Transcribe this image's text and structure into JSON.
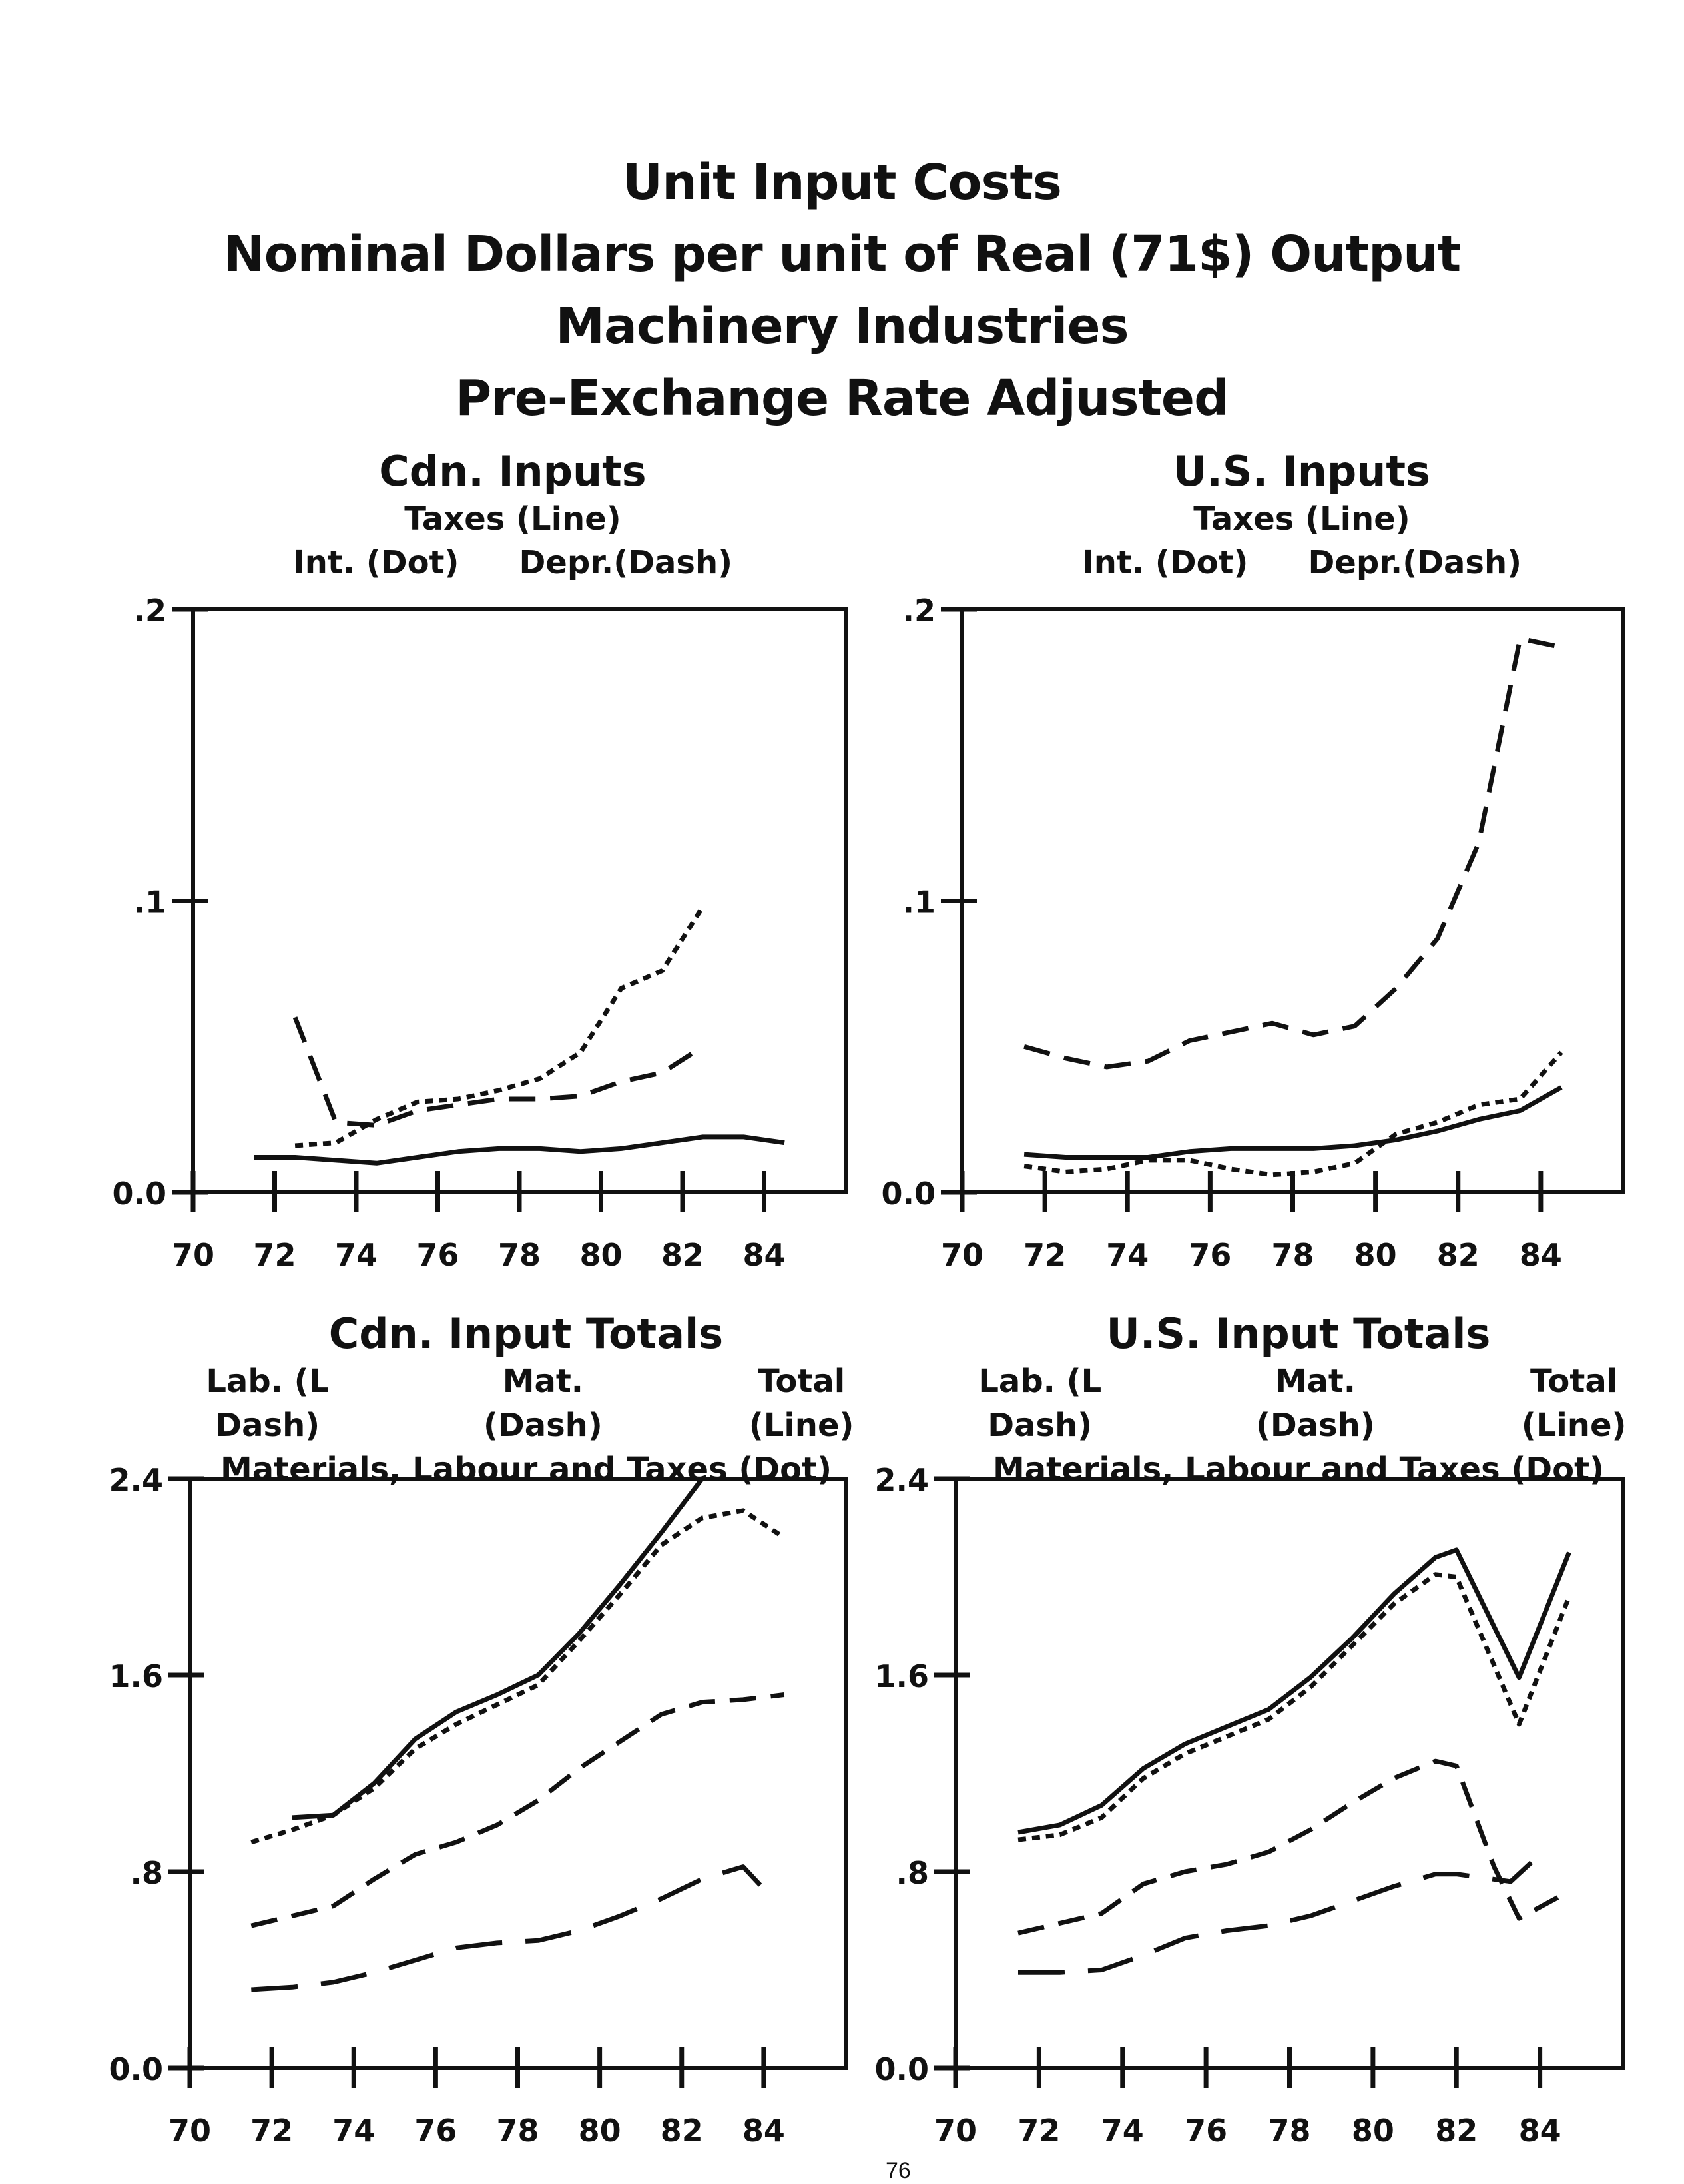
{
  "page": {
    "title_lines": [
      "Unit Input Costs",
      "Nominal Dollars per unit of Real (71$) Output",
      "Machinery Industries",
      "Pre-Exchange Rate Adjusted"
    ],
    "page_number": "76"
  },
  "chart_data": [
    {
      "type": "line",
      "title": "Cdn. Inputs",
      "subtitle": "Taxes (Line)",
      "legend": [
        "Int. (Dot)",
        "Depr.(Dash)"
      ],
      "xlabel": "",
      "ylabel": "",
      "xlim": [
        70,
        86
      ],
      "ylim": [
        0,
        0.2
      ],
      "x_ticks": [
        70,
        72,
        74,
        76,
        78,
        80,
        82,
        84
      ],
      "x_tick_labels": [
        "70",
        "72",
        "74",
        "76",
        "78",
        "80",
        "82",
        "84"
      ],
      "y_ticks": [
        0,
        0.1,
        0.2
      ],
      "y_tick_labels": [
        "0.0",
        ".1",
        ".2"
      ],
      "series": [
        {
          "name": "Taxes (Line)",
          "style": "solid",
          "x": [
            71.5,
            72.5,
            73.5,
            74.5,
            75.5,
            76.5,
            77.5,
            78.5,
            79.5,
            80.5,
            81.5,
            82.5,
            83.5,
            84.5
          ],
          "y": [
            0.012,
            0.012,
            0.011,
            0.01,
            0.012,
            0.014,
            0.015,
            0.015,
            0.014,
            0.015,
            0.017,
            0.019,
            0.019,
            0.017
          ]
        },
        {
          "name": "Int. (Dot)",
          "style": "dot",
          "x": [
            72.5,
            73.5,
            74.5,
            75.5,
            76.5,
            77.5,
            78.5,
            79.5,
            80.5,
            81.5,
            82.5
          ],
          "y": [
            0.016,
            0.017,
            0.025,
            0.031,
            0.032,
            0.035,
            0.039,
            0.048,
            0.07,
            0.076,
            0.098
          ]
        },
        {
          "name": "Depr.(Dash)",
          "style": "dash",
          "x": [
            72.5,
            73.5,
            74.5,
            75.5,
            76.5,
            77.5,
            78.5,
            79.5,
            80.5,
            81.5,
            82.5
          ],
          "y": [
            0.06,
            0.024,
            0.023,
            0.028,
            0.03,
            0.032,
            0.032,
            0.033,
            0.038,
            0.041,
            0.05
          ]
        }
      ]
    },
    {
      "type": "line",
      "title": "U.S. Inputs",
      "subtitle": "Taxes (Line)",
      "legend": [
        "Int. (Dot)",
        "Depr.(Dash)"
      ],
      "xlabel": "",
      "ylabel": "",
      "xlim": [
        70,
        86
      ],
      "ylim": [
        0,
        0.2
      ],
      "x_ticks": [
        70,
        72,
        74,
        76,
        78,
        80,
        82,
        84
      ],
      "x_tick_labels": [
        "70",
        "72",
        "74",
        "76",
        "78",
        "80",
        "82",
        "84"
      ],
      "y_ticks": [
        0,
        0.1,
        0.2
      ],
      "y_tick_labels": [
        "0.0",
        ".1",
        ".2"
      ],
      "series": [
        {
          "name": "Taxes (Line)",
          "style": "solid",
          "x": [
            71.5,
            72.5,
            73.5,
            74.5,
            75.5,
            76.5,
            77.5,
            78.5,
            79.5,
            80.5,
            81.5,
            82.5,
            83.5,
            84.5
          ],
          "y": [
            0.013,
            0.012,
            0.012,
            0.012,
            0.014,
            0.015,
            0.015,
            0.015,
            0.016,
            0.018,
            0.021,
            0.025,
            0.028,
            0.036
          ]
        },
        {
          "name": "Int. (Dot)",
          "style": "dot",
          "x": [
            71.5,
            72.5,
            73.5,
            74.5,
            75.5,
            76.5,
            77.5,
            78.5,
            79.5,
            80.5,
            81.5,
            82.5,
            83.5,
            84.5
          ],
          "y": [
            0.009,
            0.007,
            0.008,
            0.011,
            0.011,
            0.008,
            0.006,
            0.007,
            0.01,
            0.02,
            0.024,
            0.03,
            0.032,
            0.048
          ]
        },
        {
          "name": "Depr.(Dash)",
          "style": "dash",
          "x": [
            71.5,
            72.5,
            73.5,
            74.5,
            75.5,
            76.5,
            77.5,
            78.5,
            79.5,
            80.5,
            81.5,
            82.5,
            83.5,
            84.5
          ],
          "y": [
            0.05,
            0.046,
            0.043,
            0.045,
            0.052,
            0.055,
            0.058,
            0.054,
            0.057,
            0.07,
            0.087,
            0.12,
            0.19,
            0.187
          ]
        }
      ]
    },
    {
      "type": "line",
      "title": "Cdn. Input Totals",
      "legend": [
        "Lab. (L Dash)",
        "Mat. (Dash)",
        "Total (Line)"
      ],
      "subtitle": "Materials, Labour and Taxes (Dot)",
      "xlabel": "",
      "ylabel": "",
      "xlim": [
        70,
        86
      ],
      "ylim": [
        0,
        2.4
      ],
      "x_ticks": [
        70,
        72,
        74,
        76,
        78,
        80,
        82,
        84
      ],
      "x_tick_labels": [
        "70",
        "72",
        "74",
        "76",
        "78",
        "80",
        "82",
        "84"
      ],
      "y_ticks": [
        0,
        0.8,
        1.6,
        2.4
      ],
      "y_tick_labels": [
        "0.0",
        ".8",
        "1.6",
        "2.4"
      ],
      "series": [
        {
          "name": "Total (Line)",
          "style": "solid",
          "x": [
            72.5,
            73.5,
            74.5,
            75.5,
            76.5,
            77.5,
            78.5,
            79.5,
            80.5,
            81.5,
            82.5
          ],
          "y": [
            1.02,
            1.03,
            1.16,
            1.34,
            1.45,
            1.52,
            1.6,
            1.77,
            1.97,
            2.18,
            2.4
          ]
        },
        {
          "name": "Materials, Labour and Taxes (Dot)",
          "style": "dot",
          "x": [
            71.5,
            72.5,
            73.5,
            74.5,
            75.5,
            76.5,
            77.5,
            78.5,
            79.5,
            80.5,
            81.5,
            82.5,
            83.5,
            84.5
          ],
          "y": [
            0.92,
            0.97,
            1.03,
            1.14,
            1.3,
            1.4,
            1.48,
            1.56,
            1.74,
            1.93,
            2.13,
            2.24,
            2.27,
            2.16
          ]
        },
        {
          "name": "Mat. (Dash)",
          "style": "dash",
          "x": [
            71.5,
            72.5,
            73.5,
            74.5,
            75.5,
            76.5,
            77.5,
            78.5,
            79.5,
            80.5,
            81.5,
            82.5,
            83.5,
            84.5
          ],
          "y": [
            0.58,
            0.62,
            0.66,
            0.77,
            0.87,
            0.92,
            0.99,
            1.09,
            1.22,
            1.33,
            1.44,
            1.49,
            1.5,
            1.52
          ]
        },
        {
          "name": "Lab. (L Dash)",
          "style": "long-dash",
          "x": [
            71.5,
            72.5,
            73.5,
            74.5,
            75.5,
            76.5,
            77.5,
            78.5,
            79.5,
            80.5,
            81.5,
            82.5,
            83.5,
            84.0
          ],
          "y": [
            0.32,
            0.33,
            0.35,
            0.39,
            0.44,
            0.49,
            0.51,
            0.52,
            0.56,
            0.62,
            0.69,
            0.77,
            0.82,
            0.73
          ]
        }
      ]
    },
    {
      "type": "line",
      "title": "U.S. Input Totals",
      "legend": [
        "Lab. (L Dash)",
        "Mat. (Dash)",
        "Total (Line)"
      ],
      "subtitle": "Materials, Labour and Taxes (Dot)",
      "xlabel": "",
      "ylabel": "",
      "xlim": [
        70,
        86
      ],
      "ylim": [
        0,
        2.4
      ],
      "x_ticks": [
        70,
        72,
        74,
        76,
        78,
        80,
        82,
        84
      ],
      "x_tick_labels": [
        "70",
        "72",
        "74",
        "76",
        "78",
        "80",
        "82",
        "84"
      ],
      "y_ticks": [
        0,
        0.8,
        1.6,
        2.4
      ],
      "y_tick_labels": [
        "0.0",
        ".8",
        "1.6",
        "2.4"
      ],
      "series": [
        {
          "name": "Total (Line)",
          "style": "solid",
          "x": [
            71.5,
            72.5,
            73.5,
            74.5,
            75.5,
            76.5,
            77.5,
            78.5,
            79.5,
            80.5,
            81.5,
            82.0,
            83.5,
            84.7
          ],
          "y": [
            0.96,
            0.99,
            1.07,
            1.22,
            1.32,
            1.39,
            1.46,
            1.59,
            1.75,
            1.93,
            2.08,
            2.11,
            1.59,
            2.1
          ]
        },
        {
          "name": "Materials, Labour and Taxes (Dot)",
          "style": "dot",
          "x": [
            71.5,
            72.5,
            73.5,
            74.5,
            75.5,
            76.5,
            77.5,
            78.5,
            79.5,
            80.5,
            81.5,
            82.0,
            83.5,
            84.7
          ],
          "y": [
            0.93,
            0.95,
            1.02,
            1.18,
            1.28,
            1.35,
            1.42,
            1.55,
            1.72,
            1.89,
            2.01,
            2.0,
            1.4,
            1.92
          ]
        },
        {
          "name": "Mat. (Dash)",
          "style": "dash",
          "x": [
            71.5,
            72.5,
            73.5,
            74.5,
            75.5,
            76.5,
            77.5,
            78.5,
            79.5,
            80.5,
            81.5,
            82.0,
            82.9,
            83.5,
            84.7
          ],
          "y": [
            0.55,
            0.59,
            0.63,
            0.75,
            0.8,
            0.83,
            0.88,
            0.97,
            1.08,
            1.18,
            1.25,
            1.23,
            0.82,
            0.61,
            0.72
          ]
        },
        {
          "name": "Lab. (L Dash)",
          "style": "long-dash",
          "x": [
            71.5,
            72.5,
            73.5,
            74.5,
            75.5,
            76.5,
            77.5,
            78.5,
            79.5,
            80.5,
            81.5,
            82.0,
            83.3,
            84.0
          ],
          "y": [
            0.39,
            0.39,
            0.4,
            0.46,
            0.53,
            0.56,
            0.58,
            0.62,
            0.68,
            0.74,
            0.79,
            0.79,
            0.76,
            0.87
          ]
        }
      ]
    }
  ]
}
